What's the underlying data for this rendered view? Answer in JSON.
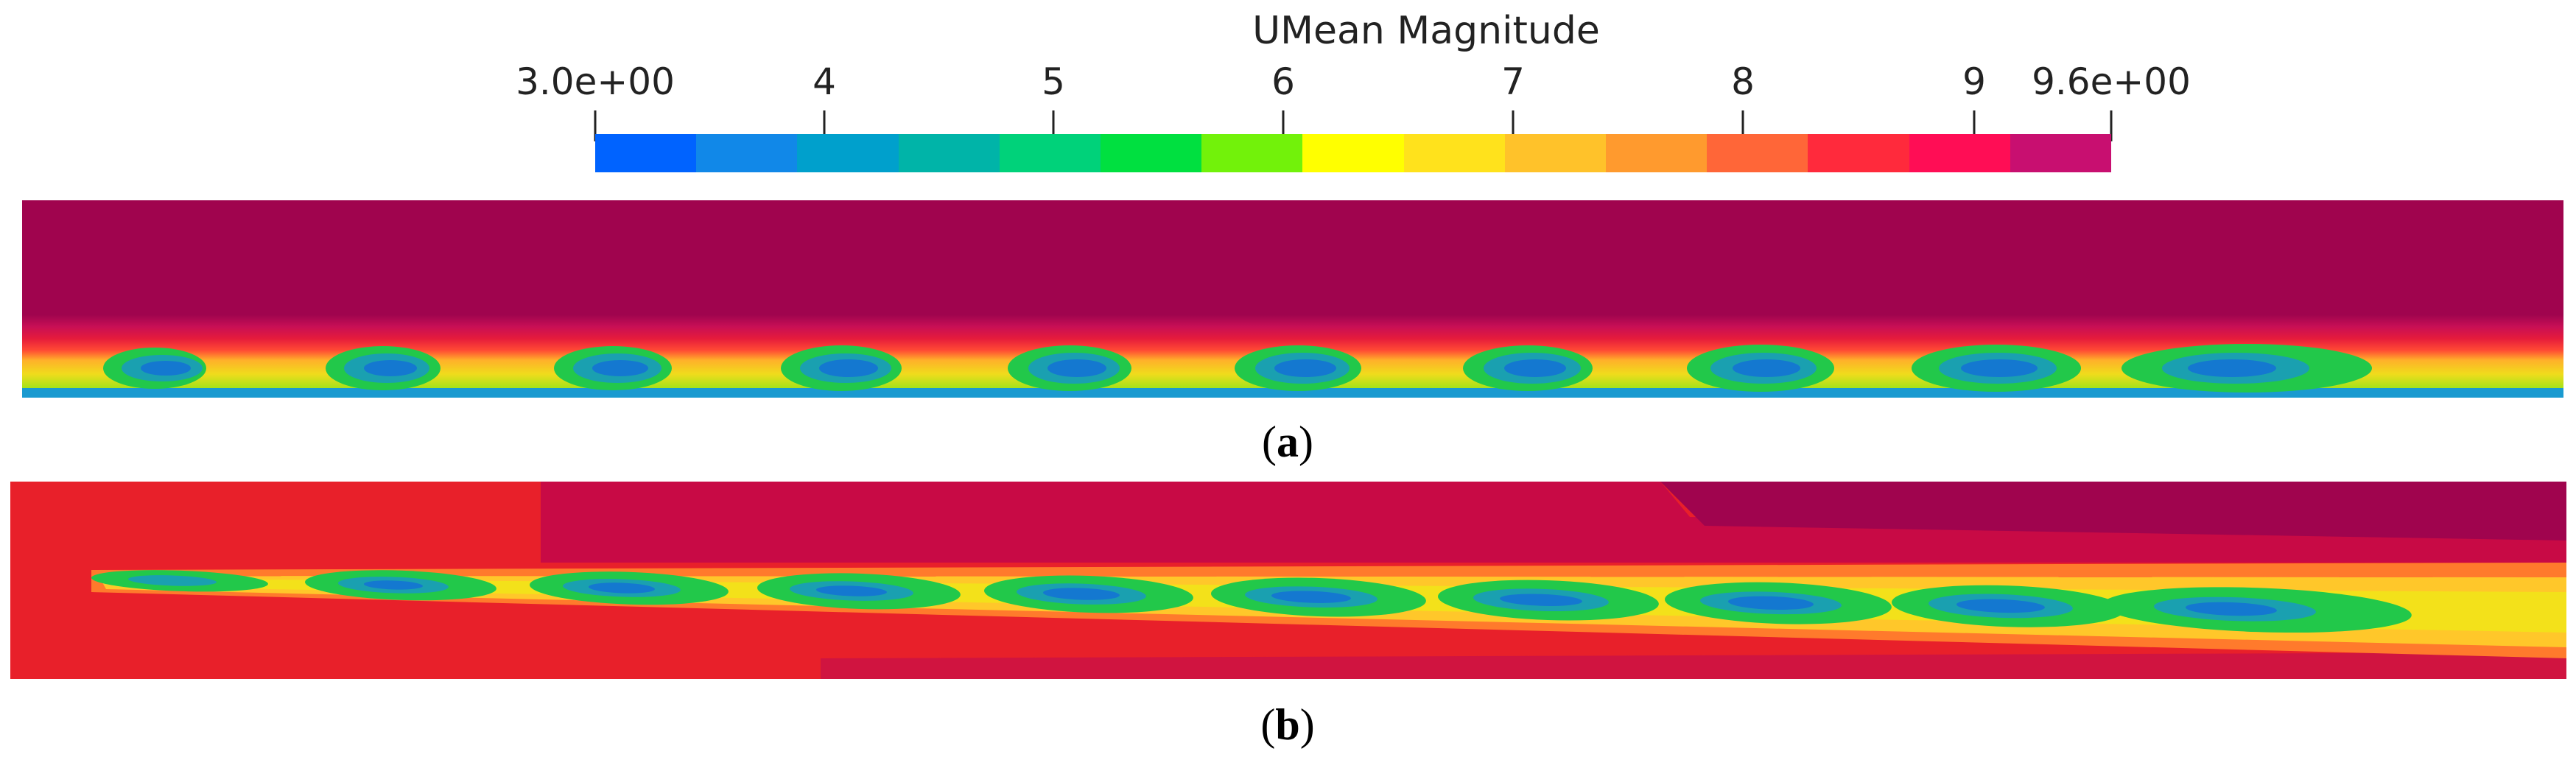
{
  "colorbar": {
    "title": "UMean Magnitude",
    "min_label": "3.0e+00",
    "max_label": "9.6e+00",
    "min": 3.0,
    "max": 9.6,
    "ticks": [
      "4",
      "5",
      "6",
      "7",
      "8",
      "9"
    ],
    "tick_values": [
      4,
      5,
      6,
      7,
      8,
      9
    ],
    "colors": [
      "#0063ff",
      "#1188e8",
      "#00a0cc",
      "#00b4a8",
      "#00d27a",
      "#00e040",
      "#72f20a",
      "#ffff00",
      "#ffe21c",
      "#ffc22a",
      "#ff9a2e",
      "#ff6638",
      "#ff2a3c",
      "#ff0d55",
      "#c80f70"
    ]
  },
  "panels": [
    {
      "caption_label": "a",
      "caption_open": "(",
      "caption_close": ")"
    },
    {
      "caption_label": "b",
      "caption_open": "(",
      "caption_close": ")"
    }
  ]
}
